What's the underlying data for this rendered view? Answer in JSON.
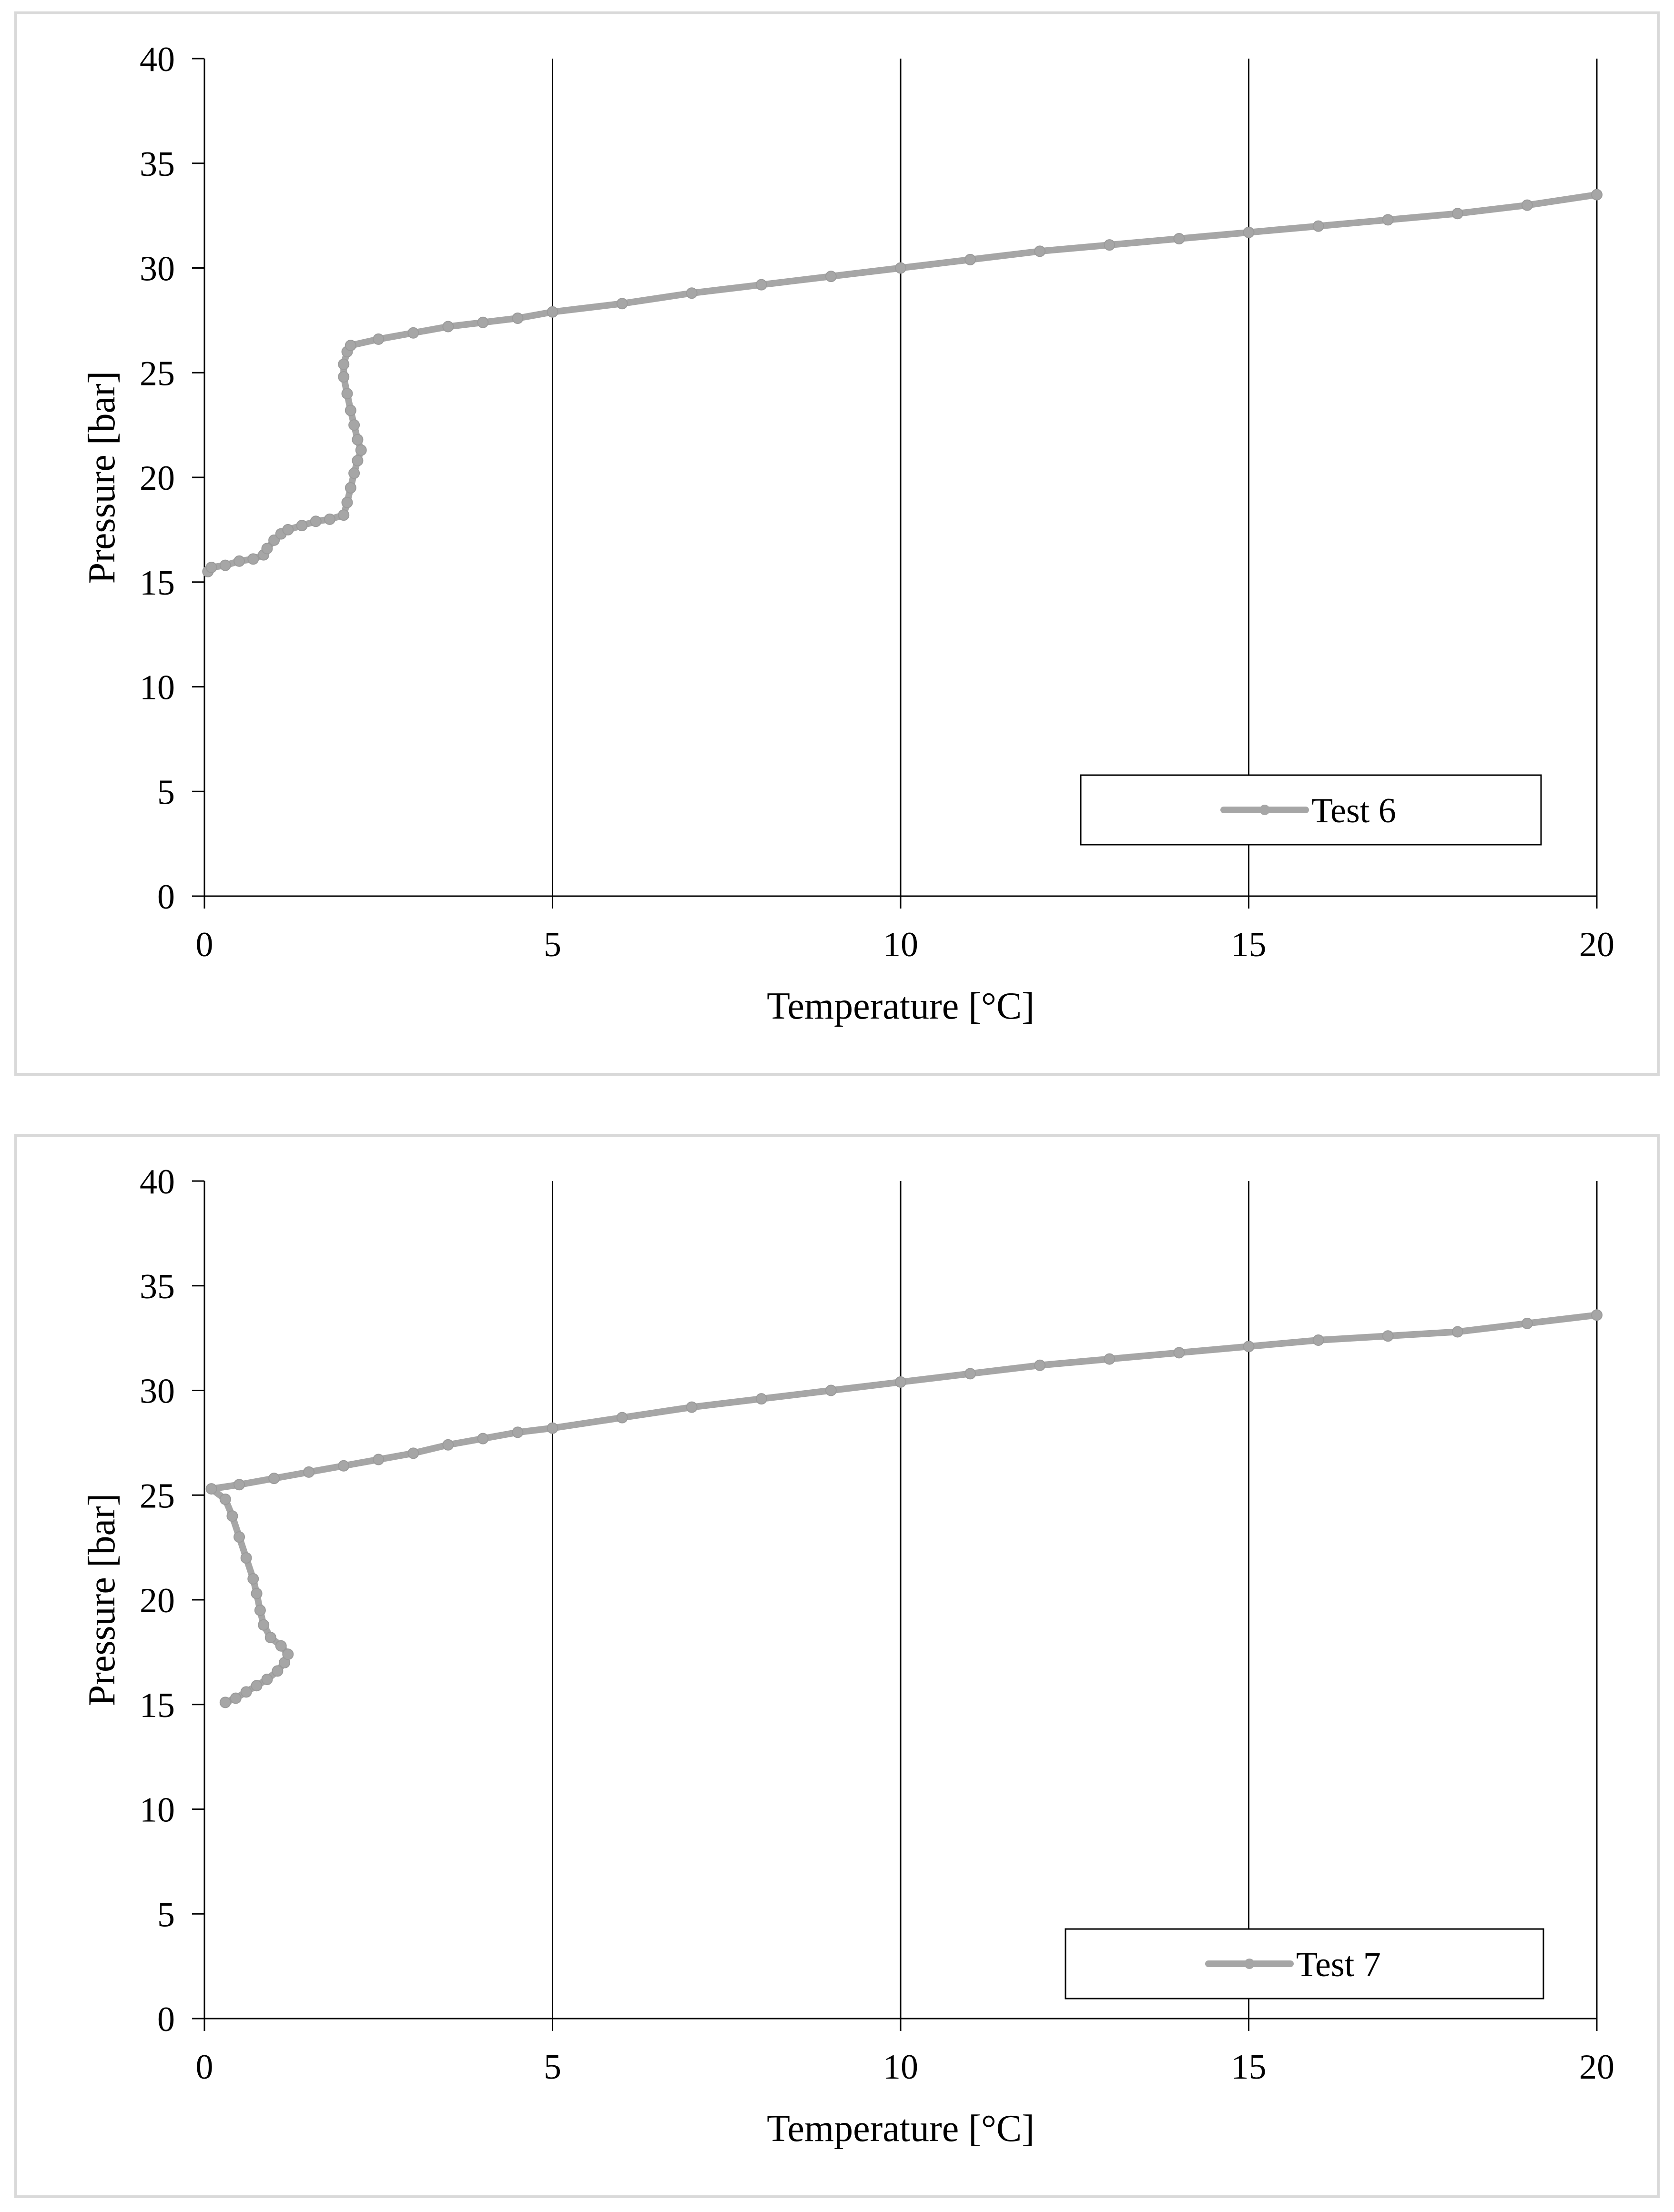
{
  "chart_data": [
    {
      "type": "line",
      "title": "",
      "xlabel": "Temperature [°C]",
      "ylabel": "Pressure [bar]",
      "xlim": [
        0,
        20
      ],
      "ylim": [
        0,
        40
      ],
      "x_ticks": [
        "0",
        "5",
        "10",
        "15",
        "20"
      ],
      "y_ticks": [
        "0",
        "5",
        "10",
        "15",
        "20",
        "25",
        "30",
        "35",
        "40"
      ],
      "grid": "vertical",
      "legend_position": "bottom-right",
      "series": [
        {
          "name": "Test 6",
          "color": "#a6a6a6",
          "marker": "circle",
          "x": [
            0.05,
            0.1,
            0.3,
            0.5,
            0.7,
            0.85,
            0.9,
            1.0,
            1.1,
            1.2,
            1.4,
            1.6,
            1.8,
            2.0,
            2.05,
            2.1,
            2.15,
            2.2,
            2.25,
            2.2,
            2.15,
            2.1,
            2.05,
            2.0,
            2.0,
            2.05,
            2.1,
            2.5,
            3.0,
            3.5,
            4.0,
            4.5,
            5.0,
            6.0,
            7.0,
            8.0,
            9.0,
            10.0,
            11.0,
            12.0,
            13.0,
            14.0,
            15.0,
            16.0,
            17.0,
            18.0,
            19.0,
            20.0
          ],
          "y": [
            15.5,
            15.7,
            15.8,
            16.0,
            16.1,
            16.3,
            16.6,
            17.0,
            17.3,
            17.5,
            17.7,
            17.9,
            18.0,
            18.2,
            18.8,
            19.5,
            20.2,
            20.8,
            21.3,
            21.8,
            22.5,
            23.2,
            24.0,
            24.8,
            25.4,
            26.0,
            26.3,
            26.6,
            26.9,
            27.2,
            27.4,
            27.6,
            27.9,
            28.3,
            28.8,
            29.2,
            29.6,
            30.0,
            30.4,
            30.8,
            31.1,
            31.4,
            31.7,
            32.0,
            32.3,
            32.6,
            33.0,
            33.5
          ]
        }
      ]
    },
    {
      "type": "line",
      "title": "",
      "xlabel": "Temperature [°C]",
      "ylabel": "Pressure [bar]",
      "xlim": [
        0,
        20
      ],
      "ylim": [
        0,
        40
      ],
      "x_ticks": [
        "0",
        "5",
        "10",
        "15",
        "20"
      ],
      "y_ticks": [
        "0",
        "5",
        "10",
        "15",
        "20",
        "25",
        "30",
        "35",
        "40"
      ],
      "grid": "vertical",
      "legend_position": "bottom-right",
      "series": [
        {
          "name": "Test 7",
          "color": "#a6a6a6",
          "marker": "circle",
          "x": [
            0.3,
            0.45,
            0.6,
            0.75,
            0.9,
            1.05,
            1.15,
            1.2,
            1.1,
            0.95,
            0.85,
            0.8,
            0.75,
            0.7,
            0.6,
            0.5,
            0.4,
            0.3,
            0.1,
            0.5,
            1.0,
            1.5,
            2.0,
            2.5,
            3.0,
            3.5,
            4.0,
            4.5,
            5.0,
            6.0,
            7.0,
            8.0,
            9.0,
            10.0,
            11.0,
            12.0,
            13.0,
            14.0,
            15.0,
            16.0,
            17.0,
            18.0,
            19.0,
            20.0
          ],
          "y": [
            15.1,
            15.3,
            15.6,
            15.9,
            16.2,
            16.6,
            17.0,
            17.4,
            17.8,
            18.2,
            18.8,
            19.5,
            20.3,
            21.0,
            22.0,
            23.0,
            24.0,
            24.8,
            25.3,
            25.5,
            25.8,
            26.1,
            26.4,
            26.7,
            27.0,
            27.4,
            27.7,
            28.0,
            28.2,
            28.7,
            29.2,
            29.6,
            30.0,
            30.4,
            30.8,
            31.2,
            31.5,
            31.8,
            32.1,
            32.4,
            32.6,
            32.8,
            33.2,
            33.6
          ]
        }
      ]
    }
  ]
}
